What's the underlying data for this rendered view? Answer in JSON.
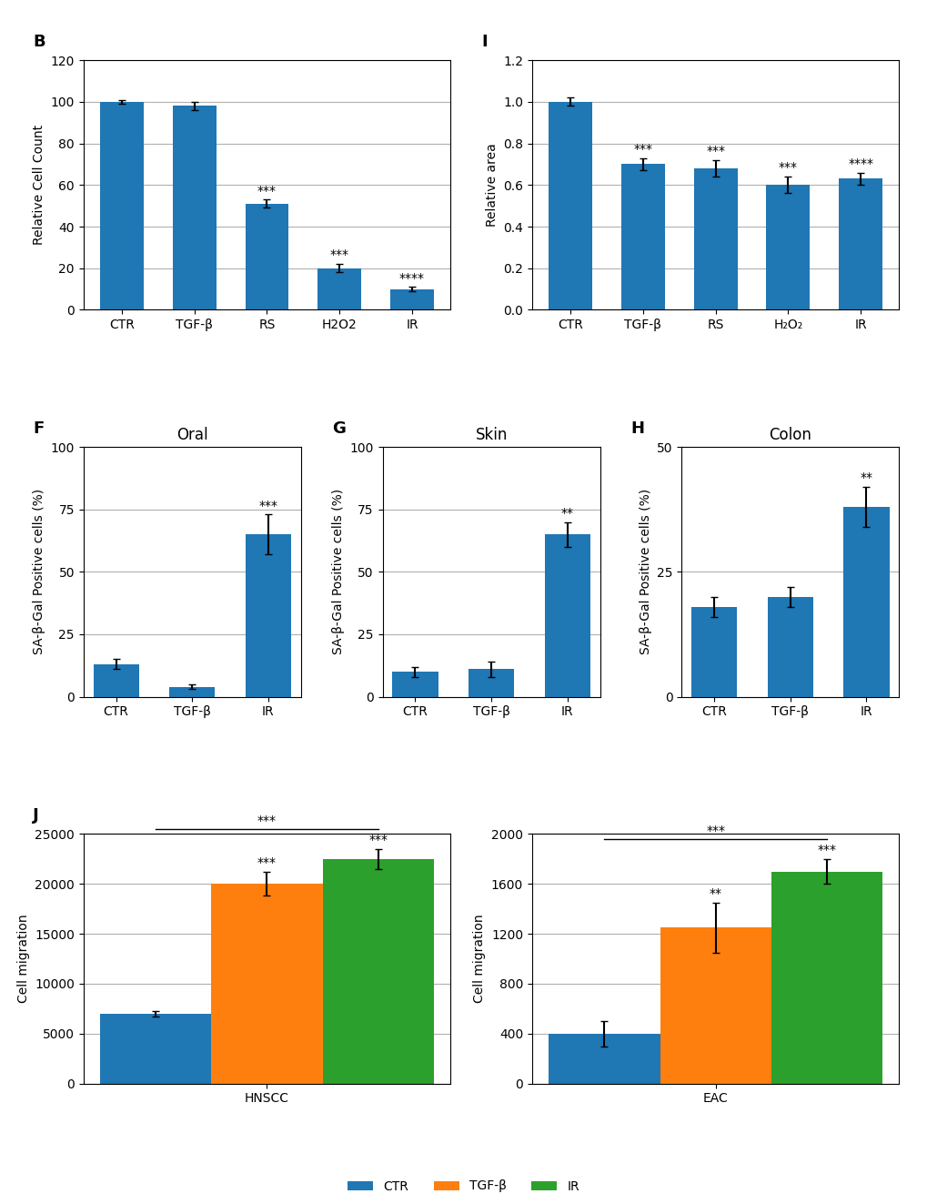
{
  "chart_data": [
    {
      "type": "bar",
      "categories": [
        "CTR",
        "TGF-β",
        "RS",
        "H2O2",
        "IR"
      ],
      "values": [
        100,
        98,
        51,
        20,
        10
      ],
      "errors": [
        1,
        2,
        2,
        2,
        1
      ],
      "ylabel": "Relative Cell Count",
      "ylim": [
        0,
        120
      ],
      "yticks": [
        0,
        20,
        40,
        60,
        80,
        100,
        120
      ],
      "grid": "y",
      "annotations": [
        {
          "text": "B"
        },
        {
          "text": "***",
          "category": "RS"
        },
        {
          "text": "***",
          "category": "H2O2"
        },
        {
          "text": "****",
          "category": "IR"
        }
      ]
    },
    {
      "type": "bar",
      "title": "Oral",
      "categories": [
        "CTR",
        "TGF-β",
        "IR"
      ],
      "values": [
        13,
        4,
        65
      ],
      "errors": [
        2,
        1,
        8
      ],
      "ylabel": "SA-β-Gal Positive cells (%)",
      "ylim": [
        0,
        100
      ],
      "yticks": [
        0,
        25,
        50,
        75,
        100
      ],
      "grid": "y",
      "annotations": [
        {
          "text": "F"
        },
        {
          "text": "***",
          "category": "IR"
        }
      ]
    },
    {
      "type": "bar",
      "title": "Skin",
      "categories": [
        "CTR",
        "TGF-β",
        "IR"
      ],
      "values": [
        10,
        11,
        65
      ],
      "errors": [
        2,
        3,
        5
      ],
      "ylabel": "SA-β-Gal Positive cells (%)",
      "ylim": [
        0,
        100
      ],
      "yticks": [
        0,
        25,
        50,
        75,
        100
      ],
      "grid": "y",
      "annotations": [
        {
          "text": "G"
        },
        {
          "text": "**",
          "category": "IR"
        }
      ]
    },
    {
      "type": "bar",
      "title": "Colon",
      "categories": [
        "CTR",
        "TGF-β",
        "IR"
      ],
      "values": [
        18,
        20,
        38
      ],
      "errors": [
        2,
        2,
        4
      ],
      "ylabel": "SA-β-Gal Positive cells (%)",
      "ylim": [
        0,
        50
      ],
      "yticks": [
        0,
        25,
        50
      ],
      "grid": "y",
      "annotations": [
        {
          "text": "H"
        },
        {
          "text": "**",
          "category": "IR"
        }
      ]
    },
    {
      "type": "bar",
      "categories": [
        "CTR",
        "TGF-β",
        "RS",
        "H₂O₂",
        "IR"
      ],
      "values": [
        1.0,
        0.7,
        0.68,
        0.6,
        0.63
      ],
      "errors": [
        0.02,
        0.03,
        0.04,
        0.04,
        0.03
      ],
      "ylabel": "Relative area",
      "ylim": [
        0,
        1.2
      ],
      "yticks": [
        {
          "value": 0,
          "label": "0.0"
        },
        0.2,
        0.4,
        0.6,
        0.8,
        1.0,
        1.2
      ],
      "grid": "y",
      "annotations": [
        {
          "text": "I"
        },
        {
          "text": "***",
          "category": "TGF-β"
        },
        {
          "text": "***",
          "category": "RS"
        },
        {
          "text": "***",
          "category": "H₂O₂"
        },
        {
          "text": "****",
          "category": "IR"
        }
      ]
    },
    {
      "type": "bar",
      "categories": [
        "HNSCC"
      ],
      "series": [
        {
          "name": "CTR",
          "values": [
            7000
          ],
          "errors": [
            300
          ]
        },
        {
          "name": "TGF-β",
          "values": [
            20000
          ],
          "errors": [
            1200
          ]
        },
        {
          "name": "IR",
          "values": [
            22500
          ],
          "errors": [
            1000
          ]
        }
      ],
      "ylabel": "Cell migration",
      "ylim": [
        0,
        25000
      ],
      "yticks": [
        0,
        5000,
        10000,
        15000,
        20000,
        25000
      ],
      "grid": "y",
      "legend": "lower center",
      "annotations": [
        {
          "text": "J"
        },
        {
          "text": "***",
          "category": "HNSCC",
          "series": "TGF-β"
        },
        {
          "text": "***",
          "category": "HNSCC",
          "series": "IR"
        },
        {
          "text": "***",
          "category": "HNSCC",
          "bracket": [
            "CTR",
            "IR"
          ]
        }
      ]
    },
    {
      "type": "bar",
      "categories": [
        "EAC"
      ],
      "series": [
        {
          "name": "CTR",
          "values": [
            400
          ],
          "errors": [
            100
          ]
        },
        {
          "name": "TGF-β",
          "values": [
            1250
          ],
          "errors": [
            200
          ]
        },
        {
          "name": "IR",
          "values": [
            1700
          ],
          "errors": [
            100
          ]
        }
      ],
      "ylabel": "Cell migration",
      "ylim": [
        0,
        2000
      ],
      "yticks": [
        0,
        400,
        800,
        1200,
        1600,
        2000
      ],
      "grid": "y",
      "legend": "lower center",
      "annotations": [
        {
          "text": "**",
          "category": "EAC",
          "series": "TGF-β"
        },
        {
          "text": "***",
          "category": "EAC",
          "series": "IR"
        },
        {
          "text": "***",
          "category": "EAC",
          "bracket": [
            "CTR",
            "IR"
          ]
        }
      ]
    }
  ]
}
